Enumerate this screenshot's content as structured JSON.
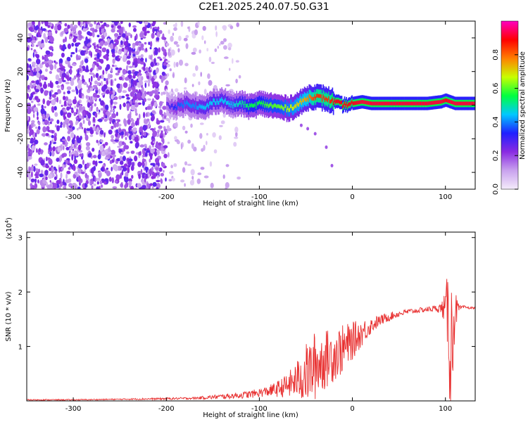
{
  "title": "C2E1.2025.240.07.50.G31",
  "chart_data": [
    {
      "type": "heatmap",
      "name": "spectrogram",
      "xlabel": "Height of straight line (km)",
      "ylabel": "Frequency (Hz)",
      "xlim": [
        -350,
        132
      ],
      "ylim": [
        -50,
        50
      ],
      "x_ticks": [
        -300,
        -200,
        -100,
        0,
        100
      ],
      "x_tick_labels": [
        "-300",
        "-200",
        "-100",
        "0",
        "100"
      ],
      "y_ticks": [
        -40,
        -20,
        0,
        20,
        40
      ],
      "y_tick_labels": [
        "-40",
        "-20",
        "0",
        "20",
        "40"
      ],
      "colorbar": {
        "label": "Normalized spectral amplitude",
        "range": [
          0,
          1
        ],
        "ticks": [
          0.0,
          0.2,
          0.4,
          0.6,
          0.8
        ],
        "tick_labels": [
          "0.0",
          "0.2",
          "0.4",
          "0.6",
          "0.8"
        ],
        "colors": [
          "#f4ecfb",
          "#c9a2ee",
          "#8a2be2",
          "#2020ff",
          "#00c8ff",
          "#00ff40",
          "#c8ff00",
          "#ff8000",
          "#ff0000",
          "#ff00c0"
        ]
      },
      "noise_region_x": [
        -350,
        -120
      ],
      "noise_dense_edge_x": -200,
      "ridge": {
        "x": [
          -200,
          -190,
          -180,
          -170,
          -160,
          -150,
          -140,
          -130,
          -120,
          -110,
          -100,
          -90,
          -80,
          -70,
          -60,
          -50,
          -45,
          -40,
          -30,
          -25,
          -20,
          -10,
          0,
          10,
          20,
          40,
          60,
          80,
          95,
          100,
          105,
          110,
          132
        ],
        "freq": [
          0,
          -1,
          1,
          0,
          -2,
          2,
          3,
          0,
          1,
          -1,
          1,
          0,
          -1,
          -2,
          0,
          4,
          5,
          5,
          4,
          3,
          2,
          0,
          1,
          2,
          1,
          1,
          1,
          1,
          2,
          3,
          2,
          1,
          1
        ],
        "amplitude": [
          0.25,
          0.35,
          0.4,
          0.4,
          0.45,
          0.45,
          0.45,
          0.45,
          0.5,
          0.55,
          0.55,
          0.6,
          0.6,
          0.65,
          0.7,
          0.75,
          0.8,
          0.85,
          0.85,
          0.85,
          0.9,
          0.9,
          0.9,
          0.92,
          0.92,
          0.92,
          0.92,
          0.92,
          0.92,
          0.9,
          0.92,
          0.92,
          0.92
        ]
      },
      "tail": {
        "x": [
          -55,
          -48,
          -40,
          -28,
          -22
        ],
        "freq": [
          -12,
          -14,
          -17,
          -25,
          -36
        ]
      }
    },
    {
      "type": "line",
      "name": "snr",
      "xlabel": "Height of straight line (km)",
      "ylabel": "SNR (10 * v/v)",
      "y_scale_label": "(x10",
      "y_scale_exponent": "4",
      "y_scale_suffix": ")",
      "xlim": [
        -350,
        132
      ],
      "ylim": [
        0,
        3.1
      ],
      "x_ticks": [
        -300,
        -200,
        -100,
        0,
        100
      ],
      "x_tick_labels": [
        "-300",
        "-200",
        "-100",
        "0",
        "100"
      ],
      "y_ticks": [
        1,
        2,
        3
      ],
      "y_tick_labels": [
        "1",
        "2",
        "3"
      ],
      "color": "#e83030",
      "series": [
        {
          "name": "SNR envelope",
          "x": [
            -350,
            -300,
            -250,
            -200,
            -170,
            -150,
            -130,
            -110,
            -100,
            -90,
            -80,
            -70,
            -60,
            -50,
            -45,
            -40,
            -30,
            -20,
            -10,
            0,
            10,
            20,
            30,
            40,
            50,
            60,
            70,
            80,
            90,
            95,
            100,
            103,
            105,
            107,
            110,
            115,
            120,
            132
          ],
          "mean": [
            0.02,
            0.02,
            0.03,
            0.04,
            0.05,
            0.07,
            0.09,
            0.12,
            0.15,
            0.18,
            0.22,
            0.28,
            0.38,
            0.5,
            0.55,
            0.65,
            0.75,
            0.85,
            0.95,
            1.1,
            1.25,
            1.38,
            1.48,
            1.55,
            1.6,
            1.64,
            1.66,
            1.68,
            1.7,
            1.7,
            1.7,
            1.6,
            1.2,
            1.0,
            1.65,
            1.7,
            1.72,
            1.7
          ],
          "spread": [
            0.01,
            0.01,
            0.01,
            0.02,
            0.02,
            0.04,
            0.05,
            0.07,
            0.08,
            0.1,
            0.15,
            0.22,
            0.35,
            0.55,
            0.6,
            0.65,
            0.55,
            0.5,
            0.45,
            0.35,
            0.25,
            0.15,
            0.1,
            0.08,
            0.06,
            0.05,
            0.05,
            0.05,
            0.06,
            0.1,
            0.3,
            0.9,
            1.5,
            1.2,
            0.4,
            0.05,
            0.03,
            0.02
          ]
        }
      ]
    }
  ]
}
